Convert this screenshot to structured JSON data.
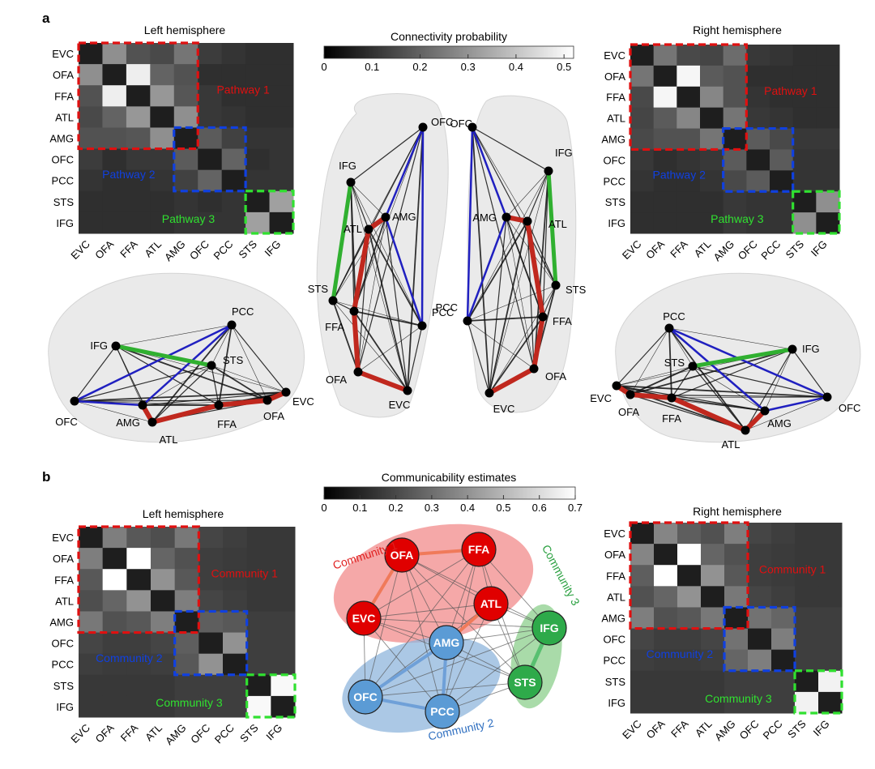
{
  "panel_a": {
    "label": "a",
    "left_title": "Left hemisphere",
    "right_title": "Right hemisphere",
    "colorbar_title": "Connectivity probability",
    "colorbar_ticks": [
      "0",
      "0.1",
      "0.2",
      "0.3",
      "0.4",
      "0.5"
    ],
    "colorbar_max": 0.52,
    "pathway_labels": [
      "Pathway 1",
      "Pathway 2",
      "Pathway 3"
    ]
  },
  "panel_b": {
    "label": "b",
    "left_title": "Left hemisphere",
    "right_title": "Right hemisphere",
    "colorbar_title": "Communicability estimates",
    "colorbar_ticks": [
      "0",
      "0.1",
      "0.2",
      "0.3",
      "0.4",
      "0.5",
      "0.6",
      "0.7"
    ],
    "colorbar_max": 0.7,
    "community_labels": [
      "Community 1",
      "Community 2",
      "Community 3"
    ]
  },
  "regions": [
    "EVC",
    "OFA",
    "FFA",
    "ATL",
    "AMG",
    "OFC",
    "PCC",
    "STS",
    "IFG"
  ],
  "colors": {
    "pathway1": "#e01010",
    "pathway2": "#1040e0",
    "pathway3": "#30e030",
    "community1_fill": "#f28b8b",
    "community2_fill": "#8fb6dc",
    "community3_fill": "#8ccf8c",
    "node_red": "#e00000",
    "node_blue": "#5b9bd5",
    "node_green": "#2eaa4a",
    "edge_red": "#c0281e",
    "edge_blue": "#2020c0",
    "edge_green": "#30b030"
  },
  "chart_data": [
    {
      "type": "heatmap",
      "title": "Left hemisphere",
      "labels": [
        "EVC",
        "OFA",
        "FFA",
        "ATL",
        "AMG",
        "OFC",
        "PCC",
        "STS",
        "IFG"
      ],
      "values": [
        [
          0,
          0.26,
          0.12,
          0.1,
          0.2,
          0.07,
          0.05,
          0.04,
          0.04
        ],
        [
          0.26,
          0,
          0.48,
          0.16,
          0.12,
          0.04,
          0.04,
          0.04,
          0.04
        ],
        [
          0.12,
          0.48,
          0,
          0.28,
          0.13,
          0.06,
          0.04,
          0.04,
          0.04
        ],
        [
          0.1,
          0.16,
          0.28,
          0,
          0.26,
          0.06,
          0.05,
          0.04,
          0.04
        ],
        [
          0.12,
          0.12,
          0.13,
          0.26,
          0,
          0.14,
          0.08,
          0.05,
          0.05
        ],
        [
          0.07,
          0.04,
          0.06,
          0.06,
          0.14,
          0,
          0.16,
          0.04,
          0.05
        ],
        [
          0.05,
          0.04,
          0.04,
          0.05,
          0.08,
          0.16,
          0,
          0.05,
          0.05
        ],
        [
          0.04,
          0.04,
          0.04,
          0.04,
          0.05,
          0.04,
          0.05,
          0,
          0.3
        ],
        [
          0.04,
          0.04,
          0.04,
          0.04,
          0.05,
          0.05,
          0.05,
          0.3,
          0
        ]
      ]
    },
    {
      "type": "heatmap",
      "title": "Right hemisphere",
      "labels": [
        "EVC",
        "OFA",
        "FFA",
        "ATL",
        "AMG",
        "OFC",
        "PCC",
        "STS",
        "IFG"
      ],
      "values": [
        [
          0,
          0.2,
          0.1,
          0.09,
          0.18,
          0.06,
          0.05,
          0.04,
          0.04
        ],
        [
          0.2,
          0,
          0.5,
          0.14,
          0.12,
          0.04,
          0.04,
          0.04,
          0.04
        ],
        [
          0.1,
          0.5,
          0,
          0.24,
          0.12,
          0.05,
          0.04,
          0.04,
          0.04
        ],
        [
          0.09,
          0.14,
          0.24,
          0,
          0.2,
          0.06,
          0.05,
          0.04,
          0.04
        ],
        [
          0.1,
          0.12,
          0.12,
          0.2,
          0,
          0.14,
          0.1,
          0.06,
          0.06
        ],
        [
          0.06,
          0.04,
          0.05,
          0.06,
          0.14,
          0,
          0.14,
          0.05,
          0.05
        ],
        [
          0.05,
          0.04,
          0.04,
          0.05,
          0.1,
          0.14,
          0,
          0.05,
          0.05
        ],
        [
          0.04,
          0.04,
          0.04,
          0.04,
          0.06,
          0.05,
          0.05,
          0,
          0.26
        ],
        [
          0.04,
          0.04,
          0.04,
          0.04,
          0.06,
          0.05,
          0.05,
          0.26,
          0
        ]
      ]
    },
    {
      "type": "heatmap",
      "title": "Left hemisphere",
      "labels": [
        "EVC",
        "OFA",
        "FFA",
        "ATL",
        "AMG",
        "OFC",
        "PCC",
        "STS",
        "IFG"
      ],
      "values": [
        [
          0,
          0.3,
          0.18,
          0.15,
          0.28,
          0.12,
          0.1,
          0.08,
          0.08
        ],
        [
          0.3,
          0,
          0.7,
          0.22,
          0.16,
          0.1,
          0.09,
          0.08,
          0.08
        ],
        [
          0.18,
          0.7,
          0,
          0.36,
          0.18,
          0.1,
          0.09,
          0.08,
          0.08
        ],
        [
          0.15,
          0.22,
          0.36,
          0,
          0.3,
          0.12,
          0.1,
          0.08,
          0.08
        ],
        [
          0.28,
          0.16,
          0.18,
          0.3,
          0,
          0.2,
          0.18,
          0.1,
          0.1
        ],
        [
          0.12,
          0.1,
          0.1,
          0.12,
          0.2,
          0,
          0.36,
          0.1,
          0.1
        ],
        [
          0.1,
          0.09,
          0.09,
          0.1,
          0.18,
          0.36,
          0,
          0.1,
          0.1
        ],
        [
          0.08,
          0.08,
          0.08,
          0.08,
          0.1,
          0.1,
          0.1,
          0,
          0.68
        ],
        [
          0.08,
          0.08,
          0.08,
          0.08,
          0.1,
          0.1,
          0.1,
          0.68,
          0
        ]
      ]
    },
    {
      "type": "heatmap",
      "title": "Right hemisphere",
      "labels": [
        "EVC",
        "OFA",
        "FFA",
        "ATL",
        "AMG",
        "OFC",
        "PCC",
        "STS",
        "IFG"
      ],
      "values": [
        [
          0,
          0.32,
          0.2,
          0.16,
          0.3,
          0.12,
          0.1,
          0.08,
          0.08
        ],
        [
          0.32,
          0,
          0.7,
          0.22,
          0.16,
          0.1,
          0.09,
          0.08,
          0.08
        ],
        [
          0.2,
          0.7,
          0,
          0.36,
          0.18,
          0.1,
          0.09,
          0.08,
          0.08
        ],
        [
          0.16,
          0.22,
          0.36,
          0,
          0.28,
          0.12,
          0.1,
          0.08,
          0.08
        ],
        [
          0.3,
          0.16,
          0.18,
          0.28,
          0,
          0.26,
          0.22,
          0.1,
          0.1
        ],
        [
          0.12,
          0.1,
          0.1,
          0.12,
          0.26,
          0,
          0.3,
          0.1,
          0.1
        ],
        [
          0.1,
          0.09,
          0.09,
          0.1,
          0.22,
          0.3,
          0,
          0.1,
          0.1
        ],
        [
          0.08,
          0.08,
          0.08,
          0.08,
          0.1,
          0.1,
          0.1,
          0,
          0.66
        ],
        [
          0.08,
          0.08,
          0.08,
          0.08,
          0.1,
          0.1,
          0.1,
          0.66,
          0
        ]
      ]
    }
  ]
}
